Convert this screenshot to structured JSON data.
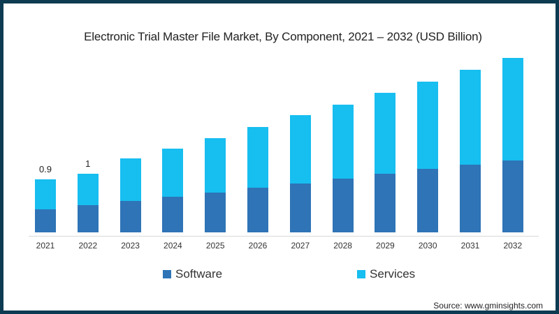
{
  "title": "Electronic Trial Master File Market, By Component, 2021 – 2032 (USD Billion)",
  "legend": [
    {
      "label": "Software",
      "color": "#2e74b6"
    },
    {
      "label": "Services",
      "color": "#17bef0"
    }
  ],
  "source": "Source: www.gminsights.com",
  "chart_data": {
    "type": "bar",
    "stacked": true,
    "title": "Electronic Trial Master File Market, By Component, 2021 – 2032 (USD Billion)",
    "xlabel": "",
    "ylabel": "USD Billion",
    "categories": [
      "2021",
      "2022",
      "2023",
      "2024",
      "2025",
      "2026",
      "2027",
      "2028",
      "2029",
      "2030",
      "2031",
      "2032"
    ],
    "series": [
      {
        "name": "Software",
        "color": "#2e74b6",
        "values": [
          0.39,
          0.46,
          0.53,
          0.6,
          0.67,
          0.76,
          0.83,
          0.91,
          1.0,
          1.08,
          1.15,
          1.22
        ]
      },
      {
        "name": "Services",
        "color": "#17bef0",
        "values": [
          0.51,
          0.54,
          0.72,
          0.82,
          0.93,
          1.03,
          1.16,
          1.26,
          1.37,
          1.48,
          1.61,
          1.74
        ]
      }
    ],
    "totals": [
      0.9,
      1.0,
      1.25,
      1.42,
      1.6,
      1.79,
      1.99,
      2.17,
      2.37,
      2.56,
      2.76,
      2.96
    ],
    "data_labels": [
      {
        "category": "2021",
        "label": "0.9"
      },
      {
        "category": "2022",
        "label": "1"
      }
    ],
    "ylim": [
      0,
      3.0
    ],
    "grid": false,
    "legend_position": "bottom"
  }
}
